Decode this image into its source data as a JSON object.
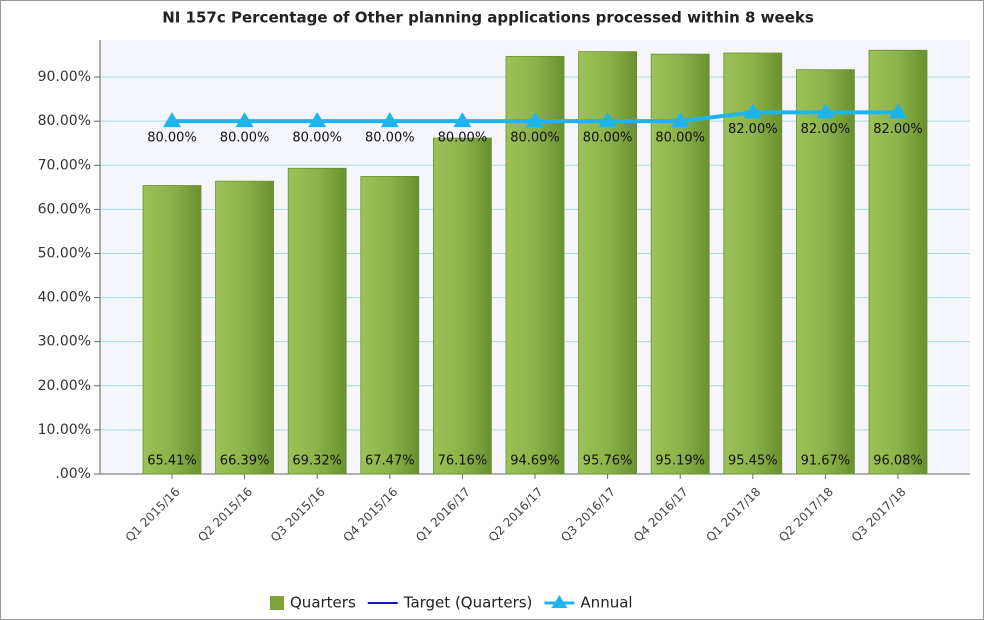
{
  "chart_data": {
    "type": "bar",
    "title": "NI 157c Percentage of Other planning applications processed within 8 weeks",
    "categories": [
      "Q1 2015/16",
      "Q2 2015/16",
      "Q3 2015/16",
      "Q4 2015/16",
      "Q1 2016/17",
      "Q2 2016/17",
      "Q3 2016/17",
      "Q4 2016/17",
      "Q1 2017/18",
      "Q2 2017/18",
      "Q3 2017/18"
    ],
    "series": [
      {
        "name": "Quarters",
        "type": "bar",
        "color": "#7da33c",
        "values": [
          65.41,
          66.39,
          69.32,
          67.47,
          76.16,
          94.69,
          95.76,
          95.19,
          95.45,
          91.67,
          96.08
        ],
        "value_labels": [
          "65.41%",
          "66.39%",
          "69.32%",
          "67.47%",
          "76.16%",
          "94.69%",
          "95.76%",
          "95.19%",
          "95.45%",
          "91.67%",
          "96.08%"
        ]
      },
      {
        "name": "Target (Quarters)",
        "type": "line",
        "color": "#1a1ab0",
        "values": [
          null,
          null,
          null,
          null,
          null,
          null,
          null,
          null,
          null,
          null,
          null
        ]
      },
      {
        "name": "Annual",
        "type": "line",
        "color": "#1eb4f0",
        "values": [
          80,
          80,
          80,
          80,
          80,
          80,
          80,
          80,
          82,
          82,
          82
        ],
        "value_labels": [
          "80.00%",
          "80.00%",
          "80.00%",
          "80.00%",
          "80.00%",
          "80.00%",
          "80.00%",
          "80.00%",
          "82.00%",
          "82.00%",
          "82.00%"
        ]
      }
    ],
    "ylim": [
      0,
      98.4
    ],
    "yticks": [
      {
        "value": 0,
        "label": ".00%"
      },
      {
        "value": 10,
        "label": "10.00%"
      },
      {
        "value": 20,
        "label": "20.00%"
      },
      {
        "value": 30,
        "label": "30.00%"
      },
      {
        "value": 40,
        "label": "40.00%"
      },
      {
        "value": 50,
        "label": "50.00%"
      },
      {
        "value": 60,
        "label": "60.00%"
      },
      {
        "value": 70,
        "label": "70.00%"
      },
      {
        "value": 80,
        "label": "80.00%"
      },
      {
        "value": 90,
        "label": "90.00%"
      }
    ],
    "grid": true,
    "legend": "bottom"
  }
}
